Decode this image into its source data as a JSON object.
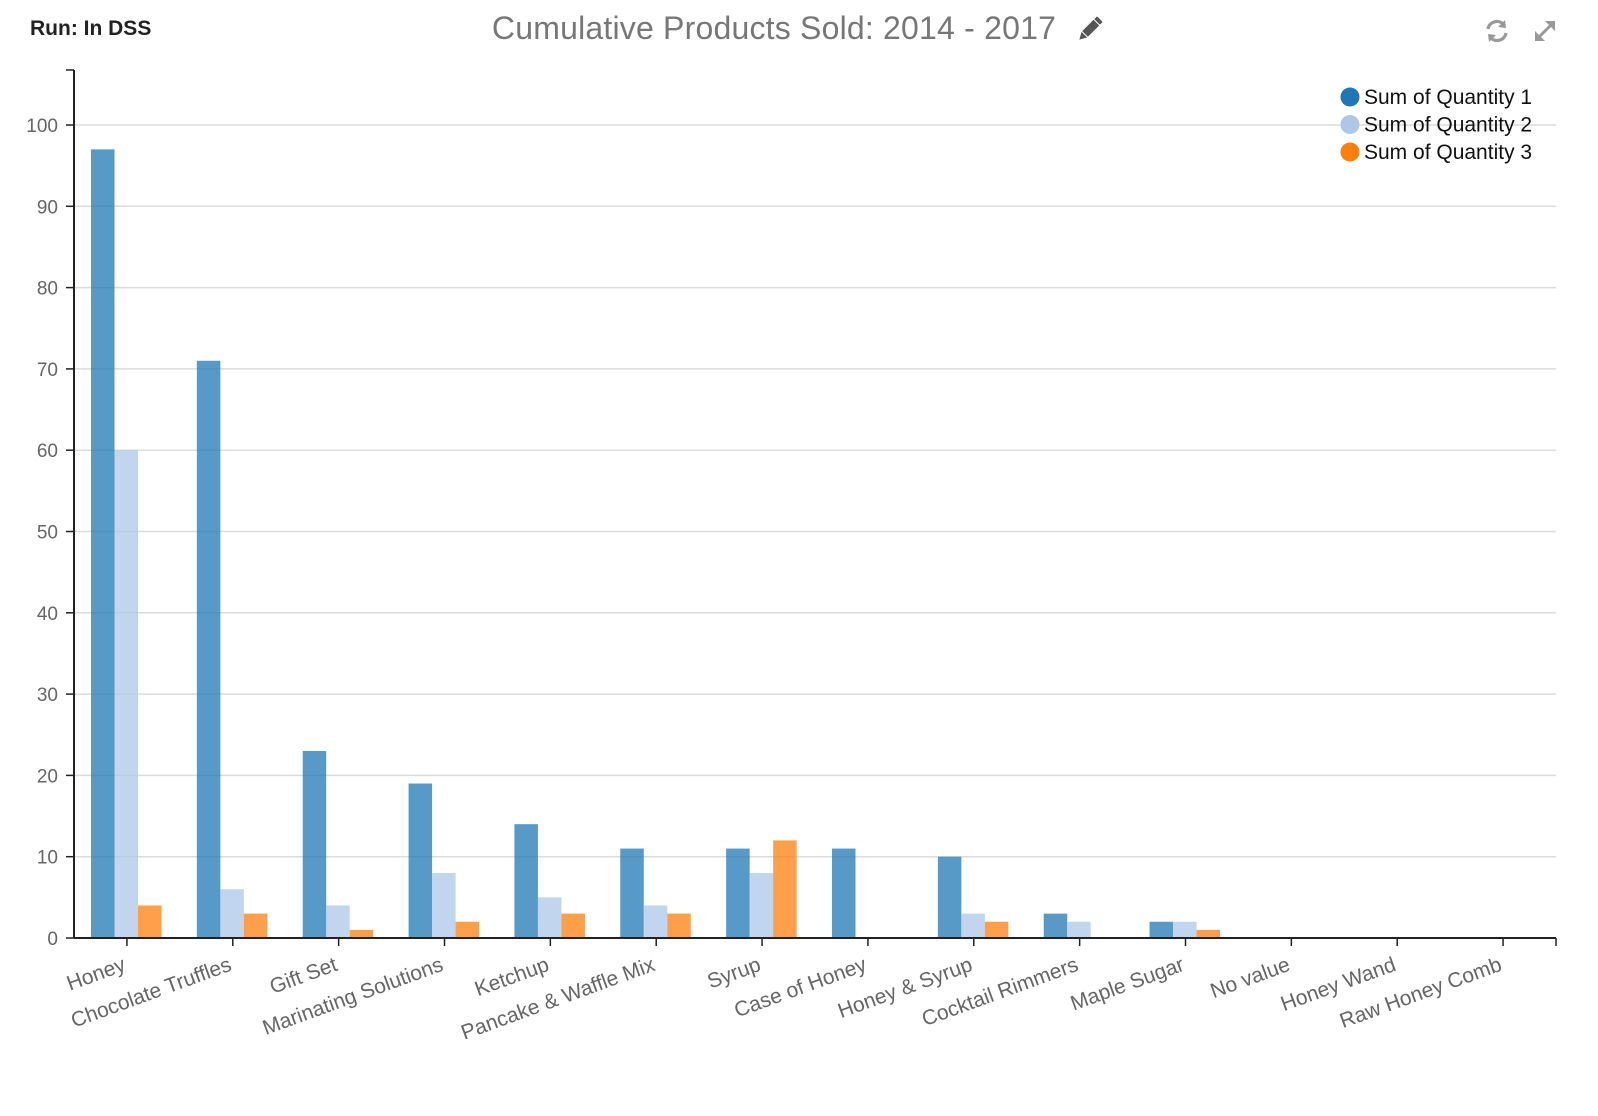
{
  "header": {
    "run_label": "Run: In DSS",
    "icons": [
      "pencil-icon",
      "refresh-icon",
      "expand-icon"
    ]
  },
  "chart_data": {
    "type": "bar",
    "title": "Cumulative Products Sold: 2014 - 2017",
    "xlabel": "",
    "ylabel": "",
    "ylim": [
      0,
      100
    ],
    "yticks": [
      0,
      10,
      20,
      30,
      40,
      50,
      60,
      70,
      80,
      90,
      100
    ],
    "grid": true,
    "legend_position": "top-right",
    "categories": [
      "Honey",
      "Chocolate Truffles",
      "Gift Set",
      "Marinating Solutions",
      "Ketchup",
      "Pancake & Waffle Mix",
      "Syrup",
      "Case of Honey",
      "Honey & Syrup",
      "Cocktail Rimmers",
      "Maple Sugar",
      "No value",
      "Honey Wand",
      "Raw Honey Comb"
    ],
    "series": [
      {
        "name": "Sum of Quantity 1",
        "color": "#1f77b4",
        "values": [
          97,
          71,
          23,
          19,
          14,
          11,
          11,
          11,
          10,
          3,
          2,
          0,
          0,
          0
        ]
      },
      {
        "name": "Sum of Quantity 2",
        "color": "#aec7e8",
        "values": [
          60,
          6,
          4,
          8,
          5,
          4,
          8,
          0,
          3,
          2,
          2,
          0,
          0,
          0
        ]
      },
      {
        "name": "Sum of Quantity 3",
        "color": "#ff7f0e",
        "values": [
          4,
          3,
          1,
          2,
          3,
          3,
          12,
          0,
          2,
          0,
          1,
          0,
          0,
          0
        ]
      }
    ]
  }
}
